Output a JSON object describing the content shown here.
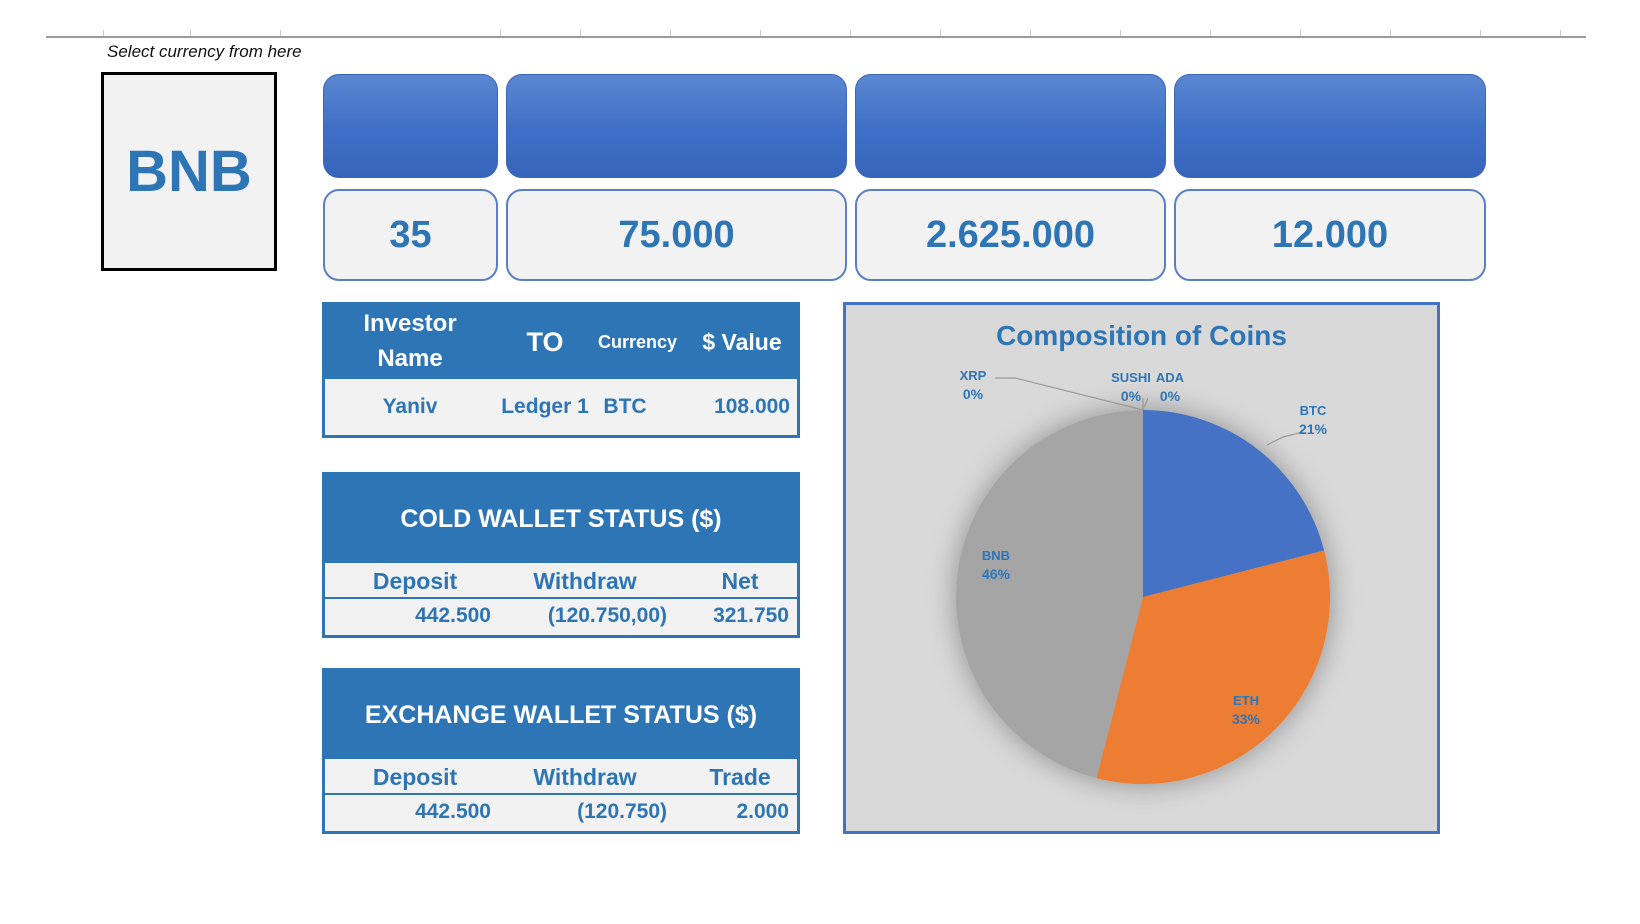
{
  "hint": "Select currency from here",
  "selected_currency": "BNB",
  "kpis": [
    {
      "value": "35"
    },
    {
      "value": "75.000"
    },
    {
      "value": "2.625.000"
    },
    {
      "value": "12.000"
    }
  ],
  "investor_table": {
    "headers": [
      "Investor Name",
      "TO",
      "Currency",
      "$ Value"
    ],
    "row": [
      "Yaniv",
      "Ledger 1",
      "BTC",
      "108.000"
    ]
  },
  "cold_wallet": {
    "title": "COLD WALLET STATUS ($)",
    "headers": [
      "Deposit",
      "Withdraw",
      "Net"
    ],
    "values": [
      "442.500",
      "(120.750,00)",
      "321.750"
    ]
  },
  "exchange_wallet": {
    "title": "EXCHANGE WALLET STATUS ($)",
    "headers": [
      "Deposit",
      "Withdraw",
      "Trade"
    ],
    "values": [
      "442.500",
      "(120.750)",
      "2.000"
    ]
  },
  "colors": {
    "accent": "#2e75b6",
    "btc": "#4472c4",
    "eth": "#ed7d31",
    "bnb": "#a5a5a5"
  },
  "chart_data": {
    "type": "pie",
    "title": "Composition of Coins",
    "categories": [
      "BTC",
      "ETH",
      "BNB",
      "XRP",
      "SUSHI",
      "ADA"
    ],
    "values": [
      21,
      33,
      46,
      0,
      0,
      0
    ],
    "labels": [
      "21%",
      "33%",
      "46%",
      "0%",
      "0%",
      "0%"
    ]
  }
}
